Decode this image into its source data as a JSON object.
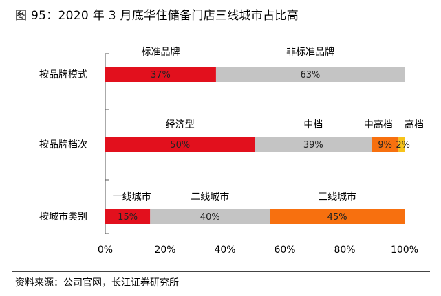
{
  "figure": {
    "title": "图 95：2020 年 3 月底华住储备门店三线城市占比高",
    "source": "资料来源：公司官网，长江证券研究所"
  },
  "chart_data": {
    "type": "bar",
    "orientation": "horizontal",
    "stacked": true,
    "x_unit": "percent",
    "xlim": [
      0,
      100
    ],
    "xticks": [
      0,
      20,
      40,
      60,
      80,
      100
    ],
    "xtick_labels": [
      "0%",
      "20%",
      "40%",
      "60%",
      "80%",
      "100%"
    ],
    "grid": false,
    "legend": "none",
    "categories": [
      "按品牌模式",
      "按品牌档次",
      "按城市类别"
    ],
    "rows": [
      {
        "category": "按品牌模式",
        "segments": [
          {
            "name": "标准品牌",
            "value": 37,
            "label": "37%",
            "color": "#e2101d"
          },
          {
            "name": "非标准品牌",
            "value": 63,
            "label": "63%",
            "color": "#c4c4c4"
          }
        ]
      },
      {
        "category": "按品牌档次",
        "segments": [
          {
            "name": "经济型",
            "value": 50,
            "label": "50%",
            "color": "#e2101d"
          },
          {
            "name": "中档",
            "value": 39,
            "label": "39%",
            "color": "#c4c4c4"
          },
          {
            "name": "中高档",
            "value": 9,
            "label": "9%",
            "color": "#f7700f"
          },
          {
            "name": "高档",
            "value": 2,
            "label": "2%",
            "color": "#f7c31a"
          }
        ]
      },
      {
        "category": "按城市类别",
        "segments": [
          {
            "name": "一线城市",
            "value": 15,
            "label": "15%",
            "color": "#e2101d"
          },
          {
            "name": "二线城市",
            "value": 40,
            "label": "40%",
            "color": "#c4c4c4"
          },
          {
            "name": "三线城市",
            "value": 45,
            "label": "45%",
            "color": "#f7700f"
          }
        ]
      }
    ]
  }
}
